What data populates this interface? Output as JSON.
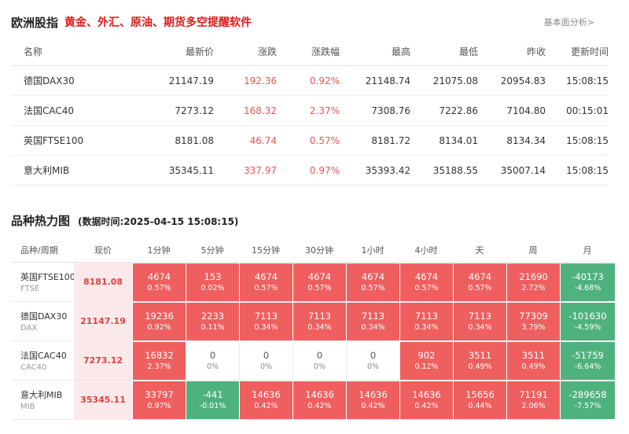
{
  "header": {
    "title": "欧洲股指",
    "subtitle": "黄金、外汇、原油、期货多空提醒软件",
    "link": "基本面分析>"
  },
  "quotes": {
    "columns": [
      "名称",
      "最新价",
      "涨跌",
      "涨跌幅",
      "最高",
      "最低",
      "昨收",
      "更新时间"
    ],
    "rows": [
      {
        "name": "德国DAX30",
        "last": "21147.19",
        "change": "192.36",
        "pct": "0.92%",
        "high": "21148.74",
        "low": "21075.08",
        "prev": "20954.83",
        "time": "15:08:15"
      },
      {
        "name": "法国CAC40",
        "last": "7273.12",
        "change": "168.32",
        "pct": "2.37%",
        "high": "7308.76",
        "low": "7222.86",
        "prev": "7104.80",
        "time": "00:15:01"
      },
      {
        "name": "英国FTSE100",
        "last": "8181.08",
        "change": "46.74",
        "pct": "0.57%",
        "high": "8181.72",
        "low": "8134.01",
        "prev": "8134.34",
        "time": "15:08:15"
      },
      {
        "name": "意大利MIB",
        "last": "35345.11",
        "change": "337.97",
        "pct": "0.97%",
        "high": "35393.42",
        "low": "35188.55",
        "prev": "35007.14",
        "time": "15:08:15"
      }
    ]
  },
  "heatmap": {
    "title": "品种热力图",
    "time_text": "(数据时间:2025-04-15 15:08:15)",
    "columns": [
      "品种/周期",
      "现价",
      "1分钟",
      "5分钟",
      "15分钟",
      "30分钟",
      "1小时",
      "4小时",
      "天",
      "周",
      "月"
    ],
    "colors": {
      "up": "#ef5f5f",
      "down": "#4fb27e",
      "price_bg": "#fde9e9"
    },
    "rows": [
      {
        "name": "英国FTSE100",
        "code": "FTSE",
        "price": "8181.08",
        "cells": [
          {
            "v": "4674",
            "p": "0.57%",
            "t": "red"
          },
          {
            "v": "153",
            "p": "0.02%",
            "t": "red"
          },
          {
            "v": "4674",
            "p": "0.57%",
            "t": "red"
          },
          {
            "v": "4674",
            "p": "0.57%",
            "t": "red"
          },
          {
            "v": "4674",
            "p": "0.57%",
            "t": "red"
          },
          {
            "v": "4674",
            "p": "0.57%",
            "t": "red"
          },
          {
            "v": "4674",
            "p": "0.57%",
            "t": "red"
          },
          {
            "v": "21690",
            "p": "2.72%",
            "t": "red"
          },
          {
            "v": "-40173",
            "p": "-4.68%",
            "t": "green"
          }
        ]
      },
      {
        "name": "德国DAX30",
        "code": "DAX",
        "price": "21147.19",
        "cells": [
          {
            "v": "19236",
            "p": "0.92%",
            "t": "red"
          },
          {
            "v": "2233",
            "p": "0.11%",
            "t": "red"
          },
          {
            "v": "7113",
            "p": "0.34%",
            "t": "red"
          },
          {
            "v": "7113",
            "p": "0.34%",
            "t": "red"
          },
          {
            "v": "7113",
            "p": "0.34%",
            "t": "red"
          },
          {
            "v": "7113",
            "p": "0.34%",
            "t": "red"
          },
          {
            "v": "7113",
            "p": "0.34%",
            "t": "red"
          },
          {
            "v": "77309",
            "p": "3.79%",
            "t": "red"
          },
          {
            "v": "-101630",
            "p": "-4.59%",
            "t": "green"
          }
        ]
      },
      {
        "name": "法国CAC40",
        "code": "CAC40",
        "price": "7273.12",
        "cells": [
          {
            "v": "16832",
            "p": "2.37%",
            "t": "red"
          },
          {
            "v": "0",
            "p": "0%",
            "t": "zero"
          },
          {
            "v": "0",
            "p": "0%",
            "t": "zero"
          },
          {
            "v": "0",
            "p": "0%",
            "t": "zero"
          },
          {
            "v": "0",
            "p": "0%",
            "t": "zero"
          },
          {
            "v": "902",
            "p": "0.12%",
            "t": "red"
          },
          {
            "v": "3511",
            "p": "0.49%",
            "t": "red"
          },
          {
            "v": "3511",
            "p": "0.49%",
            "t": "red"
          },
          {
            "v": "-51759",
            "p": "-6.64%",
            "t": "green"
          }
        ]
      },
      {
        "name": "意大利MIB",
        "code": "MIB",
        "price": "35345.11",
        "cells": [
          {
            "v": "33797",
            "p": "0.97%",
            "t": "red"
          },
          {
            "v": "-441",
            "p": "-0.01%",
            "t": "green"
          },
          {
            "v": "14636",
            "p": "0.42%",
            "t": "red"
          },
          {
            "v": "14636",
            "p": "0.42%",
            "t": "red"
          },
          {
            "v": "14636",
            "p": "0.42%",
            "t": "red"
          },
          {
            "v": "14636",
            "p": "0.42%",
            "t": "red"
          },
          {
            "v": "15656",
            "p": "0.44%",
            "t": "red"
          },
          {
            "v": "71191",
            "p": "2.06%",
            "t": "red"
          },
          {
            "v": "-289658",
            "p": "-7.57%",
            "t": "green"
          }
        ]
      }
    ]
  }
}
